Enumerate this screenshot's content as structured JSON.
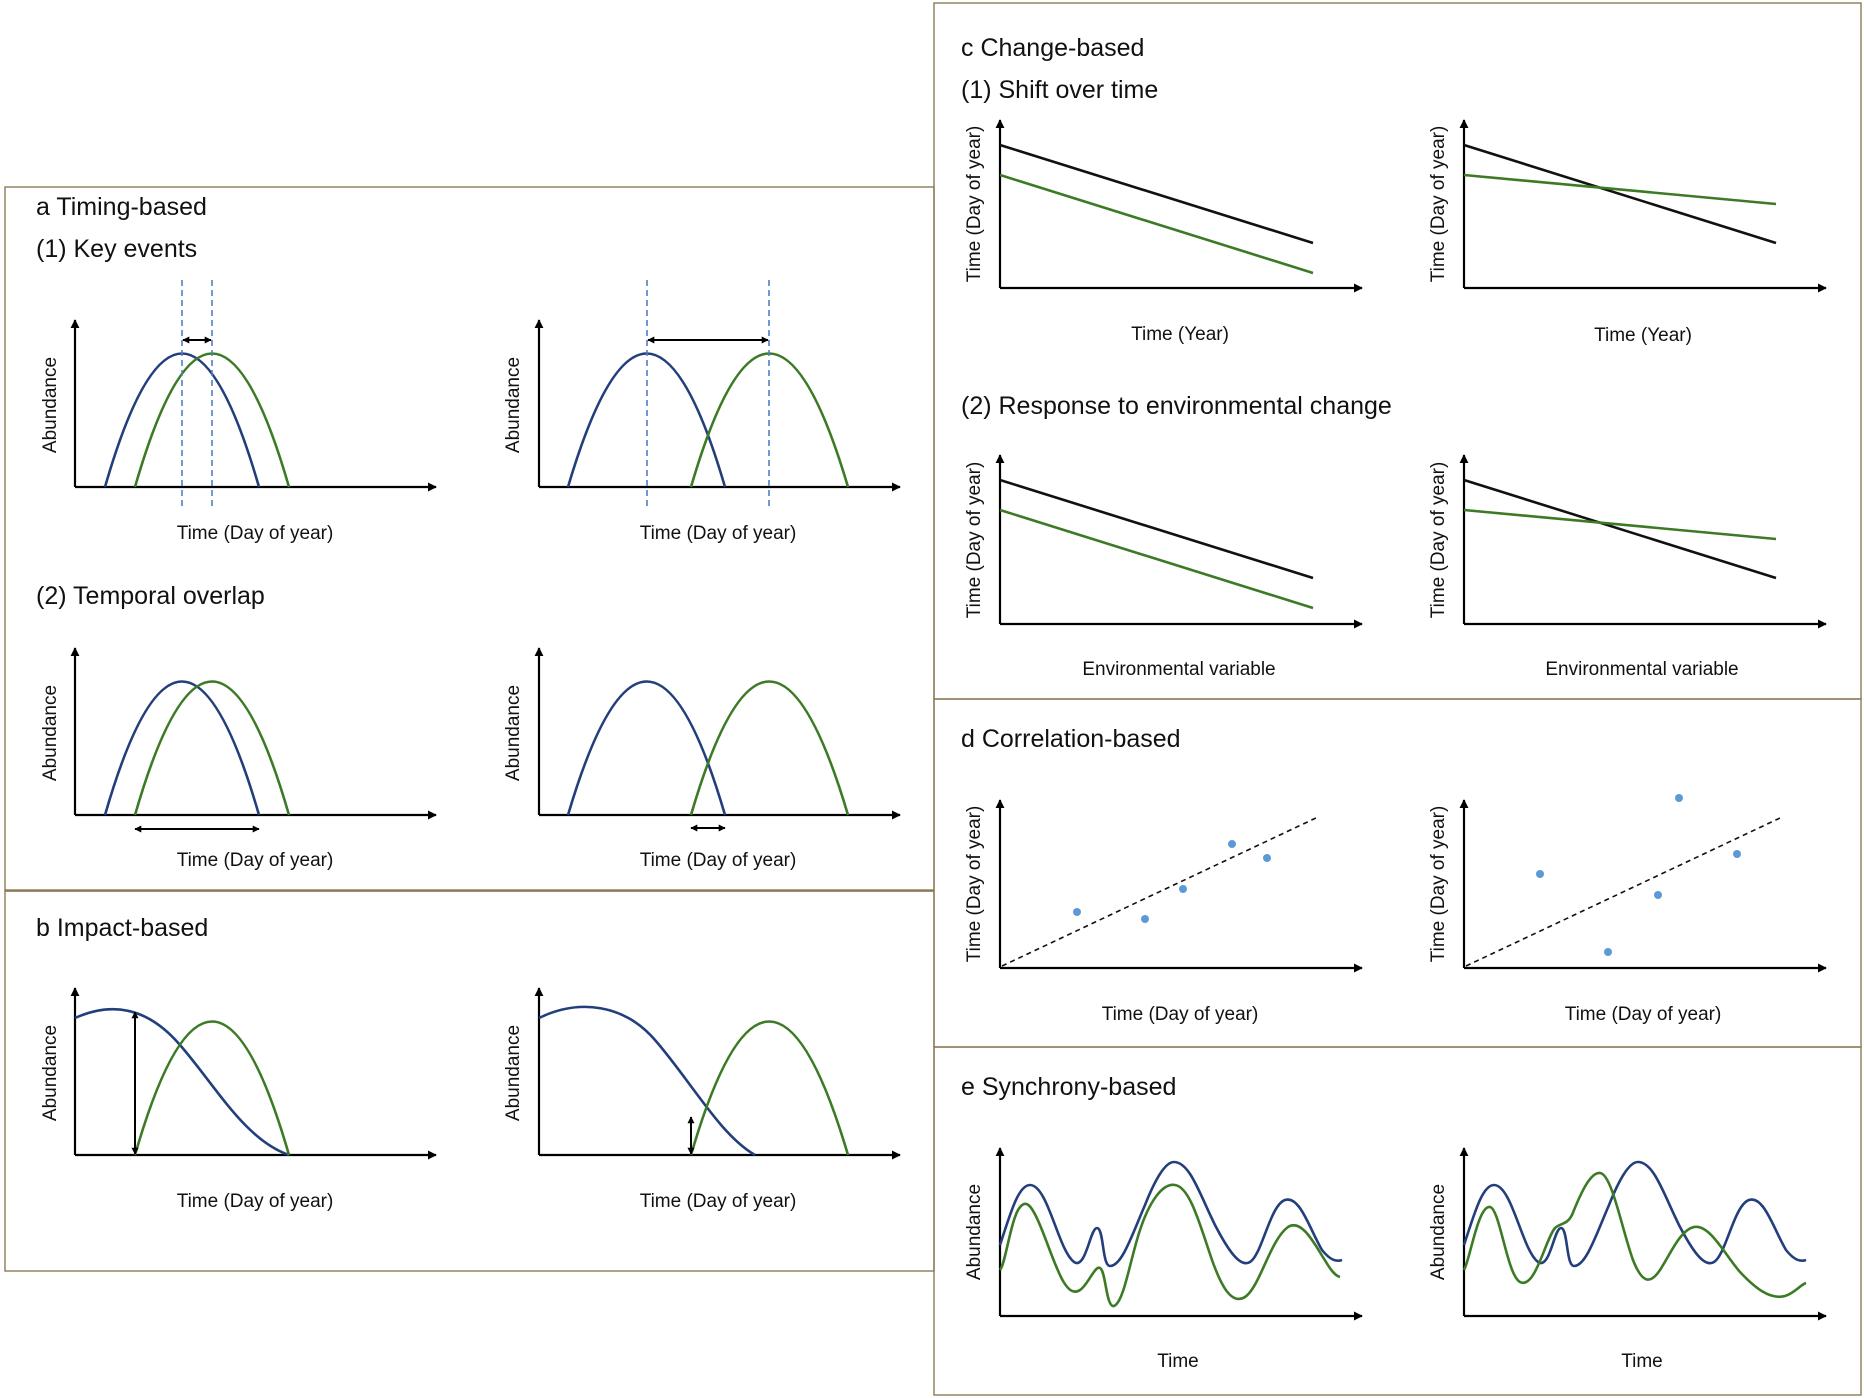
{
  "colors": {
    "blue": "#223f7c",
    "green": "#3d7a26",
    "black": "#111111",
    "point": "#5b9bd5",
    "dashed_guide": "#4f7fc4",
    "frame": "#8b7a57"
  },
  "panels": {
    "a": {
      "title": "a Timing-based",
      "sub1": "(1) Key events",
      "sub2": "(2) Temporal overlap",
      "ylabel": "Abundance",
      "xlabel": "Time (Day of year)"
    },
    "b": {
      "title": "b Impact-based",
      "ylabel": "Abundance",
      "xlabel": "Time (Day of year)"
    },
    "c": {
      "title": "c Change-based",
      "sub1": "(1) Shift over time",
      "sub2": "(2) Response to environmental change",
      "ylabel": "Time (Day of year)",
      "xlabel1": "Time (Year)",
      "xlabel2": "Environmental variable"
    },
    "d": {
      "title": "d Correlation-based",
      "ylabel": "Time (Day of year)",
      "xlabel": "Time (Day of year)"
    },
    "e": {
      "title": "e Synchrony-based",
      "ylabel": "Abundance",
      "xlabel": "Time"
    }
  }
}
